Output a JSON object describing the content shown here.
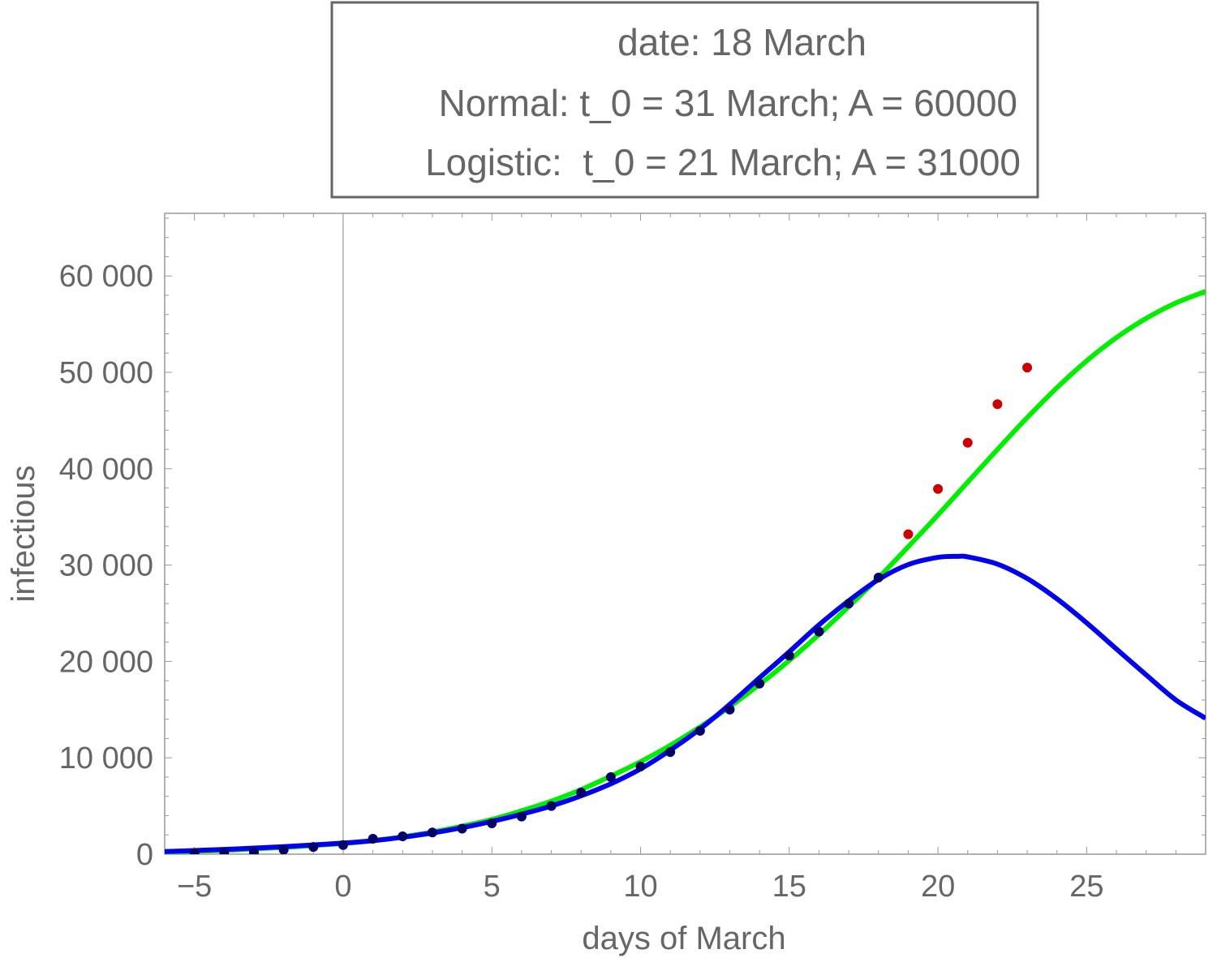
{
  "chart_data": {
    "type": "line",
    "legend_box": {
      "lines": [
        "date: 18 March",
        "Normal: t_0 = 31 March; A = 60000",
        "Logistic:  t_0 = 21 March; A = 31000"
      ],
      "placement": "top-center"
    },
    "xlabel": "days of March",
    "ylabel": "infectious",
    "xlim": [
      -6,
      29
    ],
    "ylim": [
      0,
      66500
    ],
    "x_ticks": [
      -5,
      0,
      5,
      10,
      15,
      20,
      25
    ],
    "x_tick_labels": [
      "−5",
      "0",
      "5",
      "10",
      "15",
      "20",
      "25"
    ],
    "y_ticks": [
      0,
      10000,
      20000,
      30000,
      40000,
      50000,
      60000
    ],
    "y_tick_labels": [
      "0",
      "10 000",
      "20 000",
      "30 000",
      "40 000",
      "50 000",
      "60 000"
    ],
    "grid": false,
    "frame": true,
    "vertical_line_at_x": 0,
    "series": [
      {
        "kind": "line",
        "color": "#00ee00",
        "points": [
          [
            -6,
            200
          ],
          [
            -5,
            300
          ],
          [
            -4,
            400
          ],
          [
            -3,
            550
          ],
          [
            -2,
            700
          ],
          [
            -1,
            900
          ],
          [
            0,
            1100
          ],
          [
            1,
            1400
          ],
          [
            2,
            1800
          ],
          [
            3,
            2300
          ],
          [
            4,
            2900
          ],
          [
            5,
            3600
          ],
          [
            6,
            4500
          ],
          [
            7,
            5500
          ],
          [
            8,
            6700
          ],
          [
            9,
            8100
          ],
          [
            10,
            9600
          ],
          [
            11,
            11300
          ],
          [
            12,
            13200
          ],
          [
            13,
            15300
          ],
          [
            14,
            17600
          ],
          [
            15,
            20100
          ],
          [
            16,
            22800
          ],
          [
            17,
            25700
          ],
          [
            18,
            28700
          ],
          [
            19,
            31900
          ],
          [
            20,
            35200
          ],
          [
            21,
            38600
          ],
          [
            22,
            42000
          ],
          [
            23,
            45300
          ],
          [
            24,
            48400
          ],
          [
            25,
            51200
          ],
          [
            26,
            53600
          ],
          [
            27,
            55600
          ],
          [
            28,
            57200
          ],
          [
            29,
            58400
          ]
        ]
      },
      {
        "kind": "line",
        "color": "#0000ee",
        "points": [
          [
            -6,
            280
          ],
          [
            -5,
            380
          ],
          [
            -4,
            500
          ],
          [
            -3,
            630
          ],
          [
            -2,
            780
          ],
          [
            -1,
            960
          ],
          [
            0,
            1150
          ],
          [
            1,
            1400
          ],
          [
            2,
            1750
          ],
          [
            3,
            2200
          ],
          [
            4,
            2750
          ],
          [
            5,
            3400
          ],
          [
            6,
            4150
          ],
          [
            7,
            5000
          ],
          [
            8,
            6050
          ],
          [
            9,
            7300
          ],
          [
            10,
            8850
          ],
          [
            11,
            10800
          ],
          [
            12,
            13000
          ],
          [
            13,
            15550
          ],
          [
            14,
            18300
          ],
          [
            15,
            21000
          ],
          [
            16,
            23800
          ],
          [
            17,
            26300
          ],
          [
            18,
            28500
          ],
          [
            19,
            30050
          ],
          [
            20,
            30800
          ],
          [
            20.7,
            30900
          ],
          [
            21,
            30850
          ],
          [
            22,
            30100
          ],
          [
            23,
            28600
          ],
          [
            24,
            26500
          ],
          [
            25,
            24000
          ],
          [
            26,
            21300
          ],
          [
            27,
            18600
          ],
          [
            28,
            16000
          ],
          [
            29,
            14100
          ]
        ]
      },
      {
        "kind": "scatter",
        "color": "#000066",
        "points": [
          [
            -5,
            100
          ],
          [
            -4,
            150
          ],
          [
            -3,
            200
          ],
          [
            -2,
            450
          ],
          [
            -1,
            750
          ],
          [
            0,
            950
          ],
          [
            1,
            1600
          ],
          [
            2,
            1850
          ],
          [
            3,
            2250
          ],
          [
            4,
            2650
          ],
          [
            5,
            3200
          ],
          [
            6,
            3900
          ],
          [
            7,
            5000
          ],
          [
            8,
            6400
          ],
          [
            9,
            8000
          ],
          [
            10,
            9100
          ],
          [
            11,
            10600
          ],
          [
            12,
            12800
          ],
          [
            13,
            15000
          ],
          [
            14,
            17700
          ],
          [
            15,
            20600
          ],
          [
            16,
            23100
          ],
          [
            17,
            26000
          ],
          [
            18,
            28700
          ]
        ]
      },
      {
        "kind": "scatter",
        "color": "#cc0000",
        "points": [
          [
            19,
            33200
          ],
          [
            20,
            37900
          ],
          [
            21,
            42700
          ],
          [
            22,
            46700
          ],
          [
            23,
            50500
          ]
        ]
      }
    ]
  }
}
